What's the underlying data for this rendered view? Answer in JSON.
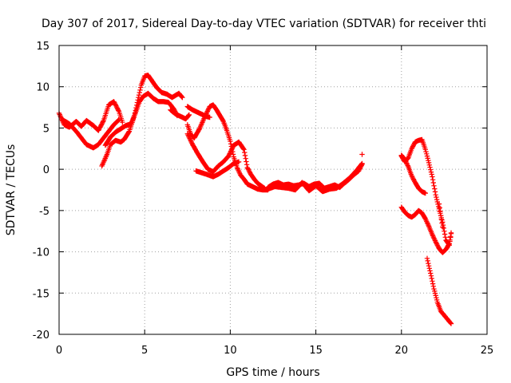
{
  "chart_data": {
    "type": "scatter",
    "title": "Day 307 of 2017, Sidereal Day-to-day VTEC variation (SDTVAR) for receiver thti",
    "xlabel": "GPS time / hours",
    "ylabel": "SDTVAR / TECUs",
    "xlim": [
      0,
      25
    ],
    "ylim": [
      -20,
      15
    ],
    "xticks": [
      "0",
      "5",
      "10",
      "15",
      "20",
      "25"
    ],
    "yticks": [
      "-20",
      "-15",
      "-10",
      "-5",
      "0",
      "5",
      "10",
      "15"
    ],
    "grid": true,
    "marker": "+",
    "color": "#ff0000",
    "series": [
      {
        "x": [
          0.0,
          0.3,
          0.6,
          1.0,
          1.3,
          1.6,
          2.0,
          2.3,
          2.6,
          2.9,
          3.2,
          3.5,
          3.7
        ],
        "y": [
          6.8,
          5.4,
          5.1,
          5.8,
          5.2,
          5.9,
          5.3,
          4.7,
          5.9,
          7.8,
          8.2,
          7.0,
          5.7
        ]
      },
      {
        "x": [
          0.2,
          0.6,
          1.0,
          1.3,
          1.6,
          2.0,
          2.3,
          2.6,
          2.9,
          3.2,
          3.5
        ],
        "y": [
          6.0,
          5.5,
          4.6,
          3.8,
          3.0,
          2.6,
          3.0,
          3.8,
          4.6,
          5.4,
          6.0
        ]
      },
      {
        "x": [
          2.5,
          2.8,
          3.0,
          3.3,
          3.6,
          3.8,
          4.1,
          4.4,
          4.6,
          4.8,
          5.0,
          5.2,
          5.4,
          5.7,
          6.0,
          6.3,
          6.6,
          7.0,
          7.2
        ],
        "y": [
          0.4,
          1.8,
          3.0,
          3.5,
          3.3,
          3.6,
          4.6,
          6.5,
          8.4,
          10.2,
          11.3,
          11.4,
          10.8,
          9.9,
          9.3,
          9.1,
          8.7,
          9.2,
          8.7
        ]
      },
      {
        "x": [
          2.7,
          3.0,
          3.3,
          3.6,
          3.9,
          4.2,
          4.4,
          4.7,
          4.9,
          5.2,
          5.5,
          5.8,
          6.1,
          6.4,
          6.7,
          6.9
        ],
        "y": [
          2.9,
          3.9,
          4.5,
          4.9,
          5.3,
          5.5,
          6.5,
          8.2,
          8.8,
          9.2,
          8.6,
          8.2,
          8.2,
          8.1,
          7.3,
          6.5
        ]
      },
      {
        "x": [
          6.5,
          6.8,
          7.1,
          7.4,
          7.6
        ],
        "y": [
          7.2,
          6.7,
          6.4,
          6.1,
          6.6
        ]
      },
      {
        "x": [
          7.5,
          7.8,
          8.1,
          8.4,
          8.6,
          8.8
        ],
        "y": [
          7.6,
          7.2,
          6.9,
          6.6,
          6.4,
          6.3
        ]
      },
      {
        "x": [
          7.5,
          7.7,
          7.9,
          8.2,
          8.5,
          8.8,
          9.0,
          9.2,
          9.4,
          9.6,
          9.8,
          10.0,
          10.2,
          10.4,
          10.6,
          10.8,
          11.0,
          11.3,
          11.6,
          11.9,
          12.2
        ],
        "y": [
          5.4,
          4.2,
          3.8,
          4.9,
          6.3,
          7.6,
          7.8,
          7.2,
          6.5,
          5.8,
          4.7,
          3.4,
          1.5,
          0.2,
          -0.7,
          -1.2,
          -1.8,
          -2.1,
          -2.4,
          -2.5,
          -2.5
        ]
      },
      {
        "x": [
          7.5,
          7.8,
          8.1,
          8.4,
          8.7,
          9.0,
          9.3,
          9.6,
          9.9,
          10.2,
          10.5,
          10.8,
          11.0,
          11.2,
          11.4,
          11.6,
          11.8,
          12.0
        ],
        "y": [
          4.3,
          3.0,
          1.9,
          0.9,
          0.0,
          -0.3,
          0.4,
          0.9,
          1.6,
          2.9,
          3.3,
          2.4,
          0.2,
          -0.6,
          -1.2,
          -1.7,
          -2.0,
          -2.3
        ]
      },
      {
        "x": [
          8.0,
          8.3,
          8.6,
          9.0,
          9.3,
          9.6,
          9.9,
          10.2,
          10.5
        ],
        "y": [
          -0.2,
          -0.4,
          -0.6,
          -0.9,
          -0.6,
          -0.2,
          0.2,
          0.7,
          0.9
        ]
      },
      {
        "x": [
          12.2,
          12.5,
          12.8,
          13.1,
          13.4,
          13.7,
          14.0,
          14.3,
          14.6,
          14.9,
          15.2,
          15.5,
          15.8,
          16.1,
          16.4,
          16.6,
          16.9,
          17.2,
          17.5,
          17.7
        ],
        "y": [
          -2.2,
          -1.8,
          -1.6,
          -1.9,
          -1.8,
          -2.0,
          -1.9,
          -1.7,
          -2.1,
          -1.8,
          -1.7,
          -2.3,
          -2.1,
          -1.9,
          -2.2,
          -1.8,
          -1.3,
          -0.7,
          -0.2,
          0.6
        ]
      },
      {
        "x": [
          12.2,
          12.6,
          13.0,
          13.4,
          13.8,
          14.2,
          14.6,
          15.0,
          15.4,
          15.8,
          16.2,
          16.6,
          17.0,
          17.4,
          17.7
        ],
        "y": [
          -2.4,
          -2.1,
          -2.2,
          -2.3,
          -2.5,
          -1.6,
          -2.6,
          -2.0,
          -2.7,
          -2.4,
          -2.3,
          -1.7,
          -1.0,
          -0.1,
          0.7
        ]
      },
      {
        "x": [
          17.7
        ],
        "y": [
          1.8
        ]
      },
      {
        "x": [
          20.0,
          20.2,
          20.4,
          20.6,
          20.8,
          21.0,
          21.2,
          21.4,
          21.6,
          21.8,
          22.0,
          22.2,
          22.4,
          22.6,
          22.8,
          22.9
        ],
        "y": [
          1.6,
          0.9,
          1.4,
          2.5,
          3.3,
          3.5,
          3.6,
          2.4,
          0.8,
          -0.9,
          -3.1,
          -4.8,
          -6.4,
          -8.6,
          -9.2,
          -7.8
        ]
      },
      {
        "x": [
          20.0,
          20.2,
          20.4,
          20.6,
          20.8,
          21.0,
          21.2,
          21.4
        ],
        "y": [
          1.7,
          1.2,
          0.3,
          -0.8,
          -1.6,
          -2.3,
          -2.7,
          -2.9
        ]
      },
      {
        "x": [
          20.0,
          20.2,
          20.4,
          20.6,
          20.8,
          21.0,
          21.2,
          21.4,
          21.6,
          21.8,
          22.0,
          22.2,
          22.4,
          22.6,
          22.8,
          22.9
        ],
        "y": [
          -4.6,
          -5.2,
          -5.6,
          -5.8,
          -5.5,
          -5.0,
          -5.3,
          -6.0,
          -6.9,
          -7.9,
          -8.8,
          -9.6,
          -10.1,
          -9.7,
          -9.0,
          -7.7
        ]
      },
      {
        "x": [
          21.5,
          21.7,
          21.9,
          22.1,
          22.3,
          22.5,
          22.7,
          22.9
        ],
        "y": [
          -10.8,
          -12.6,
          -14.5,
          -16.1,
          -17.2,
          -17.7,
          -18.2,
          -18.7
        ]
      },
      {
        "x": [
          22.2,
          22.3,
          22.4
        ],
        "y": [
          -4.2,
          -5.6,
          -7.0
        ]
      }
    ]
  }
}
